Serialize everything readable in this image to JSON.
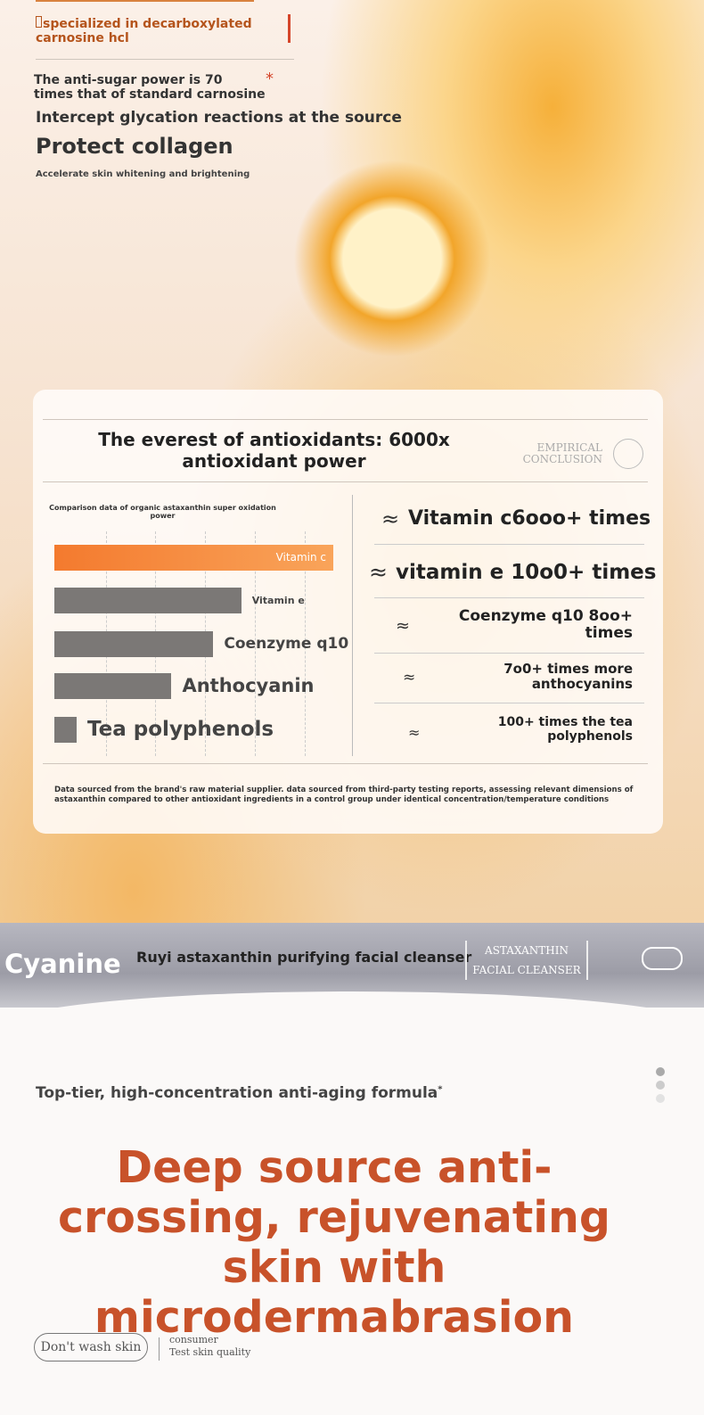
{
  "intro": {
    "tag": "specialized in decarboxylated carnosine hcl",
    "claim": "The anti-sugar power is 70 times that of standard carnosine",
    "claim_mark": "*",
    "line1": "Intercept glycation reactions at the source",
    "line2": "Protect collagen",
    "line3": "Accelerate skin whitening and brightening"
  },
  "card": {
    "title": "The everest of antioxidants: 6000x antioxidant power",
    "badge": [
      "EMPIRICAL",
      "CONCLUSION"
    ],
    "comparisons": [
      {
        "symbol": "≈",
        "text": "Vitamin c6ooo+ times"
      },
      {
        "symbol": "≈",
        "text": "vitamin e 10o0+ times"
      },
      {
        "symbol": "≈",
        "text": "Coenzyme q10 8oo+ times"
      },
      {
        "symbol": "≈",
        "text": "7o0+ times more anthocyanins"
      },
      {
        "symbol": "≈",
        "text": "100+ times the tea polyphenols"
      }
    ],
    "footnote": "Data sourced from the brand's raw material supplier. data sourced from third-party testing reports, assessing relevant dimensions of astaxanthin compared to other antioxidant ingredients in a control group under identical concentration/temperature conditions"
  },
  "chart_data": {
    "type": "bar",
    "orientation": "horizontal",
    "title": "Comparison data of organic astaxanthin super oxidation power",
    "categories": [
      "Vitamin c",
      "Vitamin e",
      "Coenzyme q10",
      "Anthocyanin",
      "Tea polyphenols"
    ],
    "values": [
      100,
      67,
      57,
      42,
      8
    ],
    "xlim": [
      0,
      100
    ],
    "colors": [
      "#f47a2e",
      "#7b7876",
      "#7b7876",
      "#7b7876",
      "#7b7876"
    ]
  },
  "banner": {
    "brand": "Cyanine",
    "product": "Ruyi astaxanthin purifying facial cleanser",
    "badge": [
      "ASTAXANTHIN",
      "FACIAL CLEANSER"
    ]
  },
  "lower": {
    "subtitle": "Top-tier, high-concentration anti-aging formula",
    "subtitle_mark": "*",
    "headline": "Deep source anti-crossing, rejuvenating skin with microdermabrasion",
    "pill": "Don't wash skin",
    "note": [
      "consumer",
      "Test skin quality"
    ]
  }
}
